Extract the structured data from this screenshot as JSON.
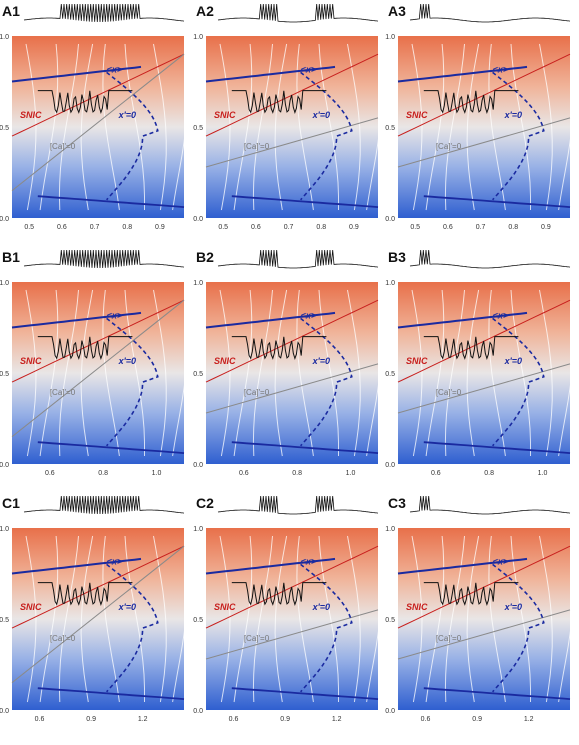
{
  "colors": {
    "top_warm": "#e8704a",
    "mid_neutral": "#e9e6e6",
    "bottom_cool": "#2f5fd0",
    "stream": "#ffffff",
    "trajectory": "#111111",
    "x_nullcline": "#1a2aa0",
    "x_avg": "#1a2aa0",
    "snic": "#c8201e",
    "ca_nullcline": "#8a8a8a"
  },
  "labels": {
    "x_avg": "<x>",
    "snic": "SNIC",
    "x_nullcline": "x'=0",
    "ca_nullcline": "[Ca]'=0"
  },
  "panels": [
    {
      "id": "A1",
      "yticks": [
        "1.0",
        "0.5",
        "0.0"
      ],
      "xticks": [
        "0.5",
        "0.6",
        "0.7",
        "0.8",
        "0.9"
      ]
    },
    {
      "id": "A2",
      "yticks": [
        "1.0",
        "0.5",
        "0.0"
      ],
      "xticks": [
        "0.5",
        "0.6",
        "0.7",
        "0.8",
        "0.9"
      ]
    },
    {
      "id": "A3",
      "yticks": [
        "1.0",
        "0.5",
        "0.0"
      ],
      "xticks": [
        "0.5",
        "0.6",
        "0.7",
        "0.8",
        "0.9"
      ]
    },
    {
      "id": "B1",
      "yticks": [
        "1.0",
        "0.5",
        "0.0"
      ],
      "xticks": [
        "0.6",
        "0.8",
        "1.0"
      ]
    },
    {
      "id": "B2",
      "yticks": [
        "1.0",
        "0.5",
        "0.0"
      ],
      "xticks": [
        "0.6",
        "0.8",
        "1.0"
      ]
    },
    {
      "id": "B3",
      "yticks": [
        "1.0",
        "0.5",
        "0.0"
      ],
      "xticks": [
        "0.6",
        "0.8",
        "1.0"
      ]
    },
    {
      "id": "C1",
      "yticks": [
        "1.0",
        "0.5",
        "0.0"
      ],
      "xticks": [
        "0.6",
        "0.9",
        "1.2"
      ]
    },
    {
      "id": "C2",
      "yticks": [
        "1.0",
        "0.5",
        "0.0"
      ],
      "xticks": [
        "0.6",
        "0.9",
        "1.2"
      ]
    },
    {
      "id": "C3",
      "yticks": [
        "1.0",
        "0.5",
        "0.0"
      ],
      "xticks": [
        "0.6",
        "0.9",
        "1.2"
      ]
    }
  ]
}
